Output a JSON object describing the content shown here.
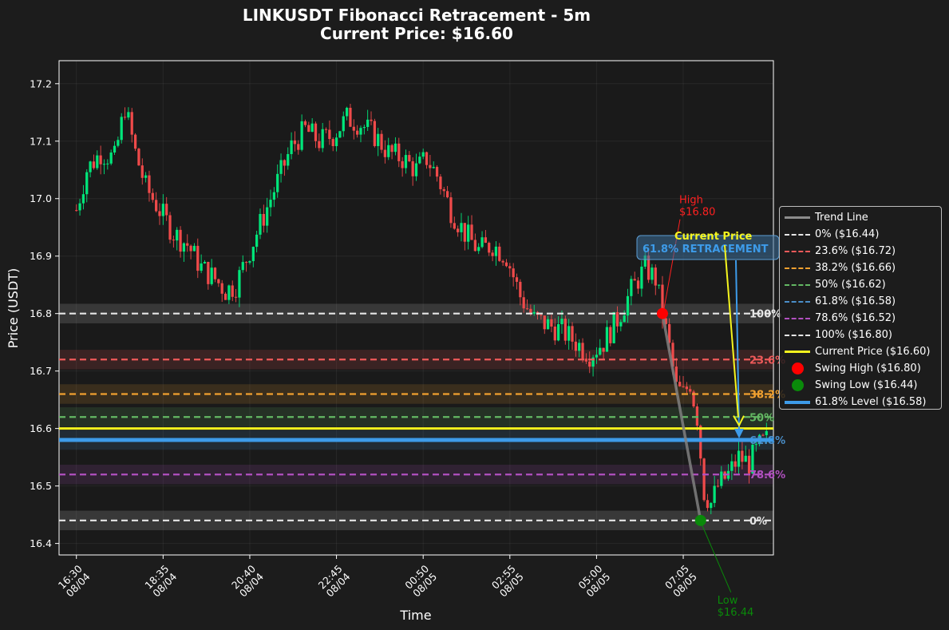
{
  "title_line1": "LINKUSDT Fibonacci Retracement - 5m",
  "title_line2": "Current Price: $16.60",
  "colors": {
    "background": "#1c1c1c",
    "plot_bg": "#1a1a1a",
    "up": "#00e67a",
    "down": "#ef4a4a",
    "trend": "#808080",
    "current": "#f5f51e",
    "level618": "#3d9be9"
  },
  "chart_data": {
    "type": "candlestick",
    "title": "LINKUSDT Fibonacci Retracement - 5m",
    "subtitle": "Current Price: $16.60",
    "xlabel": "Time",
    "ylabel": "Price (USDT)",
    "ylim": [
      16.38,
      17.24
    ],
    "xlim": [
      "08/04 16:05",
      "08/05 09:15"
    ],
    "grid": true,
    "legend_position": "right",
    "y_ticks": [
      "16.4",
      "16.5",
      "16.6",
      "16.7",
      "16.8",
      "16.9",
      "17.0",
      "17.1",
      "17.2"
    ],
    "x_ticks": [
      {
        "time": "16:30",
        "date": "08/04"
      },
      {
        "time": "18:35",
        "date": "08/04"
      },
      {
        "time": "20:40",
        "date": "08/04"
      },
      {
        "time": "22:45",
        "date": "08/04"
      },
      {
        "time": "00:50",
        "date": "08/05"
      },
      {
        "time": "02:55",
        "date": "08/05"
      },
      {
        "time": "05:00",
        "date": "08/05"
      },
      {
        "time": "07:05",
        "date": "08/05"
      }
    ],
    "candle_interval": "5m",
    "first_candle": "08/04 16:30",
    "close_path": [
      [
        "08/04 16:30",
        16.98
      ],
      [
        "08/04 16:45",
        17.05
      ],
      [
        "08/04 17:05",
        17.08
      ],
      [
        "08/04 17:25",
        17.07
      ],
      [
        "08/04 17:40",
        17.16
      ],
      [
        "08/04 17:55",
        17.08
      ],
      [
        "08/04 18:10",
        17.02
      ],
      [
        "08/04 18:30",
        16.98
      ],
      [
        "08/04 18:50",
        16.94
      ],
      [
        "08/04 19:10",
        16.92
      ],
      [
        "08/04 19:30",
        16.88
      ],
      [
        "08/04 19:50",
        16.86
      ],
      [
        "08/04 20:05",
        16.84
      ],
      [
        "08/04 20:20",
        16.85
      ],
      [
        "08/04 20:40",
        16.91
      ],
      [
        "08/04 21:00",
        16.97
      ],
      [
        "08/04 21:20",
        17.03
      ],
      [
        "08/04 21:40",
        17.09
      ],
      [
        "08/04 22:00",
        17.12
      ],
      [
        "08/04 22:20",
        17.1
      ],
      [
        "08/04 22:40",
        17.11
      ],
      [
        "08/04 23:00",
        17.14
      ],
      [
        "08/04 23:20",
        17.13
      ],
      [
        "08/04 23:40",
        17.11
      ],
      [
        "08/05 00:00",
        17.08
      ],
      [
        "08/05 00:20",
        17.07
      ],
      [
        "08/05 00:40",
        17.05
      ],
      [
        "08/05 00:55",
        17.07
      ],
      [
        "08/05 01:10",
        17.04
      ],
      [
        "08/05 01:30",
        16.98
      ],
      [
        "08/05 01:50",
        16.94
      ],
      [
        "08/05 02:10",
        16.91
      ],
      [
        "08/05 02:30",
        16.92
      ],
      [
        "08/05 02:50",
        16.9
      ],
      [
        "08/05 03:10",
        16.83
      ],
      [
        "08/05 03:30",
        16.79
      ],
      [
        "08/05 03:50",
        16.78
      ],
      [
        "08/05 04:10",
        16.77
      ],
      [
        "08/05 04:30",
        16.75
      ],
      [
        "08/05 04:50",
        16.73
      ],
      [
        "08/05 05:10",
        16.75
      ],
      [
        "08/05 05:30",
        16.79
      ],
      [
        "08/05 05:50",
        16.84
      ],
      [
        "08/05 06:10",
        16.88
      ],
      [
        "08/05 06:25",
        16.86
      ],
      [
        "08/05 06:35",
        16.8
      ],
      [
        "08/05 06:45",
        16.74
      ],
      [
        "08/05 06:55",
        16.67
      ],
      [
        "08/05 07:05",
        16.66
      ],
      [
        "08/05 07:15",
        16.68
      ],
      [
        "08/05 07:25",
        16.62
      ],
      [
        "08/05 07:35",
        16.49
      ],
      [
        "08/05 07:45",
        16.47
      ],
      [
        "08/05 07:55",
        16.5
      ],
      [
        "08/05 08:10",
        16.52
      ],
      [
        "08/05 08:25",
        16.55
      ],
      [
        "08/05 08:40",
        16.54
      ],
      [
        "08/05 08:55",
        16.57
      ],
      [
        "08/05 09:05",
        16.58
      ]
    ],
    "fib_levels": [
      {
        "label": "0%",
        "price": 16.44,
        "color": "#e6e6e6",
        "legend": "0% ($16.44)"
      },
      {
        "label": "23.6%",
        "price": 16.72,
        "color": "#ef5a5a",
        "legend": "23.6% ($16.72)"
      },
      {
        "label": "38.2%",
        "price": 16.66,
        "color": "#f0a030",
        "legend": "38.2% ($16.66)"
      },
      {
        "label": "50%",
        "price": 16.62,
        "color": "#63b863",
        "legend": "50% ($16.62)"
      },
      {
        "label": "61.8%",
        "price": 16.58,
        "color": "#4a8ec8",
        "legend": "61.8% ($16.58)"
      },
      {
        "label": "78.6%",
        "price": 16.52,
        "color": "#b150c0",
        "legend": "78.6% ($16.52)"
      },
      {
        "label": "100%",
        "price": 16.8,
        "color": "#e6e6e6",
        "legend": "100% ($16.80)"
      }
    ],
    "current_price": {
      "price": 16.6,
      "legend": "Current Price ($16.60)"
    },
    "level_618": {
      "price": 16.58,
      "legend": "61.8% Level ($16.58)"
    },
    "swing_high": {
      "price": 16.8,
      "time": "08/05 06:35",
      "label": "High\n$16.80",
      "legend": "Swing High ($16.80)"
    },
    "swing_low": {
      "price": 16.44,
      "time": "08/05 07:30",
      "label": "Low\n$16.44",
      "legend": "Swing Low ($16.44)"
    },
    "trend_line": {
      "legend": "Trend Line",
      "from": [
        "08/05 06:35",
        16.8
      ],
      "to": [
        "08/05 07:30",
        16.44
      ]
    },
    "annotations": {
      "current_price_text": "Current Price",
      "retracement_box_text": "61.8% RETRACEMENT"
    }
  },
  "legend": [
    {
      "label": "Trend Line",
      "kind": "line",
      "color": "#8c8c8c",
      "dash": false,
      "width": 3
    },
    {
      "label": "0% ($16.44)",
      "kind": "line",
      "color": "#e6e6e6",
      "dash": true,
      "width": 2
    },
    {
      "label": "23.6% ($16.72)",
      "kind": "line",
      "color": "#ef5a5a",
      "dash": true,
      "width": 2
    },
    {
      "label": "38.2% ($16.66)",
      "kind": "line",
      "color": "#f0a030",
      "dash": true,
      "width": 2
    },
    {
      "label": "50% ($16.62)",
      "kind": "line",
      "color": "#63b863",
      "dash": true,
      "width": 2
    },
    {
      "label": "61.8% ($16.58)",
      "kind": "line",
      "color": "#4a8ec8",
      "dash": true,
      "width": 2
    },
    {
      "label": "78.6% ($16.52)",
      "kind": "line",
      "color": "#b150c0",
      "dash": true,
      "width": 2
    },
    {
      "label": "100% ($16.80)",
      "kind": "line",
      "color": "#e6e6e6",
      "dash": true,
      "width": 2
    },
    {
      "label": "Current Price ($16.60)",
      "kind": "line",
      "color": "#f5f51e",
      "dash": false,
      "width": 3
    },
    {
      "label": "Swing High ($16.80)",
      "kind": "dot",
      "color": "#ff0000"
    },
    {
      "label": "Swing Low ($16.44)",
      "kind": "dot",
      "color": "#0a8a0a"
    },
    {
      "label": "61.8% Level ($16.58)",
      "kind": "line",
      "color": "#3d9be9",
      "dash": false,
      "width": 4
    }
  ]
}
